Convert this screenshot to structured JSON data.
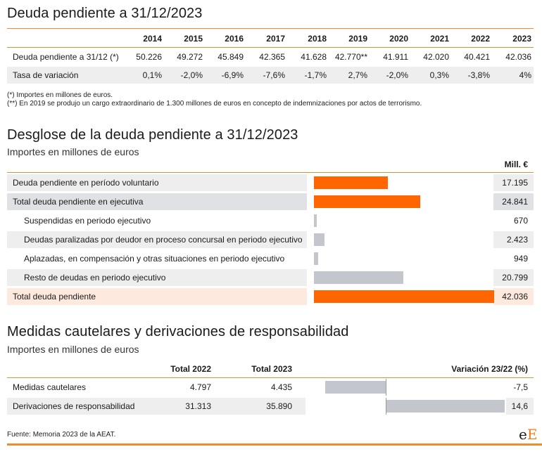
{
  "section1": {
    "title": "Deuda pendiente a 31/12/2023",
    "years": [
      "2014",
      "2015",
      "2016",
      "2017",
      "2018",
      "2019",
      "2020",
      "2021",
      "2022",
      "2023"
    ],
    "rows": [
      {
        "label": "Deuda pendiente a 31/12 (*)",
        "values": [
          "50.226",
          "49.272",
          "45.849",
          "42.365",
          "41.628",
          "42.770**",
          "41.911",
          "42.020",
          "40.421",
          "42.036"
        ]
      },
      {
        "label": "Tasa de variación",
        "values": [
          "0,1%",
          "-2,0%",
          "-6,9%",
          "-7,6%",
          "-1,7%",
          "2,7%",
          "-2,0%",
          "0,3%",
          "-3,8%",
          "4%"
        ]
      }
    ],
    "notes": [
      "(*) Importes en millones de euros.",
      "(**) En 2019 se produjo un cargo extraordinario de 1.300 millones de euros en concepto de indemnizaciones por actos de terrorismo."
    ]
  },
  "section2": {
    "title": "Desglose de la deuda pendiente a 31/12/2023",
    "subtitle": "Importes en millones de euros",
    "unit_header": "Mill. €",
    "rows": [
      {
        "label": "Deuda pendiente en período voluntario",
        "value": "17.195",
        "amount": 17195,
        "color": "orange"
      },
      {
        "label": "Total deuda pendiente en ejecutiva",
        "value": "24.841",
        "amount": 24841,
        "color": "orange"
      },
      {
        "label": "Suspendidas en periodo ejecutivo",
        "value": "670",
        "amount": 670,
        "color": "grey"
      },
      {
        "label": "Deudas paralizadas por deudor en proceso concursal en periodo ejecutivo",
        "value": "2.423",
        "amount": 2423,
        "color": "grey"
      },
      {
        "label": "Aplazadas, en compensación y otras situaciones en periodo ejecutivo",
        "value": "949",
        "amount": 949,
        "color": "grey"
      },
      {
        "label": "Resto de deudas en periodo ejecutivo",
        "value": "20.799",
        "amount": 20799,
        "color": "grey"
      },
      {
        "label": "Total deuda pendiente",
        "value": "42.036",
        "amount": 42036,
        "color": "orange"
      }
    ]
  },
  "section3": {
    "title": "Medidas cautelares y derivaciones de responsabilidad",
    "subtitle": "Importes en millones de euros",
    "headers": {
      "col1": "Total 2022",
      "col2": "Total 2023",
      "col3": "Variación 23/22 (%)"
    },
    "rows": [
      {
        "label": "Medidas cautelares",
        "total2022": "4.797",
        "total2023": "4.435",
        "variation": "-7,5",
        "pct": -7.5
      },
      {
        "label": "Derivaciones de responsabilidad",
        "total2022": "31.313",
        "total2023": "35.890",
        "variation": "14,6",
        "pct": 14.6
      }
    ]
  },
  "footer": {
    "source": "Fuente: Memoria 2023 de la AEAT.",
    "logo_small": "e",
    "logo_big": "E"
  },
  "colors": {
    "accent": "#f28a2e",
    "bar_orange": "#ff6600",
    "bar_grey": "#c3c7cd",
    "total_row": "#fde9de"
  }
}
